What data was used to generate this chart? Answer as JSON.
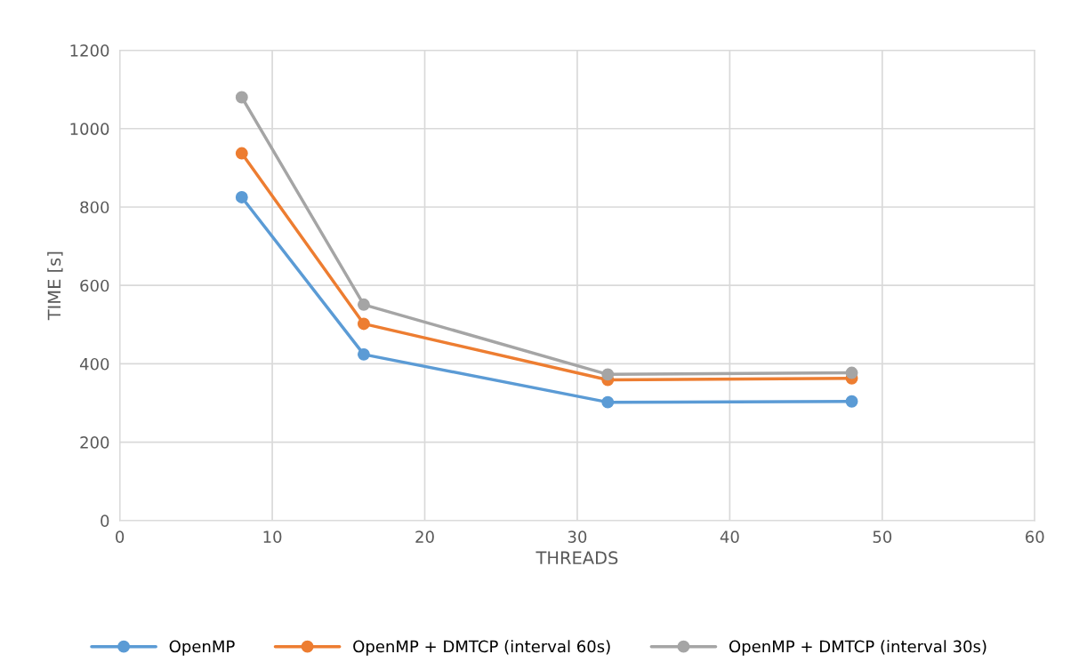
{
  "chart_data": {
    "type": "line",
    "xlabel": "THREADS",
    "ylabel": "TIME [s]",
    "x": [
      8,
      16,
      32,
      48
    ],
    "series": [
      {
        "name": "OpenMP",
        "color": "#5b9bd5",
        "values": [
          825,
          424,
          302,
          304
        ]
      },
      {
        "name": "OpenMP + DMTCP (interval 60s)",
        "color": "#ed7d31",
        "values": [
          937,
          502,
          359,
          363
        ]
      },
      {
        "name": "OpenMP + DMTCP (interval 30s)",
        "color": "#a5a5a5",
        "values": [
          1080,
          551,
          373,
          377
        ]
      }
    ],
    "xlim": [
      0,
      60
    ],
    "xticks": [
      0,
      10,
      20,
      30,
      40,
      50,
      60
    ],
    "ylim": [
      0,
      1200
    ],
    "yticks": [
      0,
      200,
      400,
      600,
      800,
      1000,
      1200
    ],
    "grid": true,
    "legend": "bottom",
    "marker": "circle",
    "line_style": "solid"
  }
}
